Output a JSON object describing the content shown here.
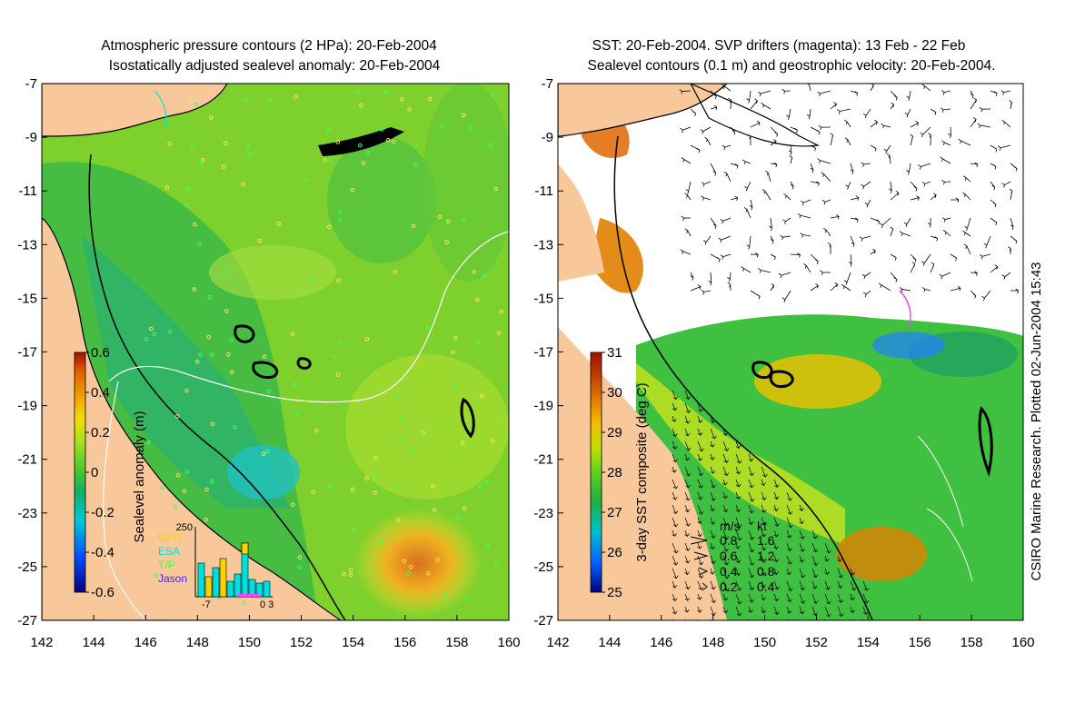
{
  "left_panel": {
    "title_line1": "Atmospheric pressure contours (2 HPa): 20-Feb-2004",
    "title_line2": "Isostatically adjusted sealevel anomaly: 20-Feb-2004",
    "colorbar": {
      "label": "Sealevel anomaly (m)",
      "ticks": [
        "0.6",
        "0.4",
        "0.2",
        "0",
        "-0.2",
        "-0.4",
        "-0.6"
      ]
    },
    "inset": {
      "ymax_label": "250",
      "xmin_label": "-7",
      "xmax_label": "0 3",
      "legend": [
        {
          "label": "GFO",
          "color": "#ffd000"
        },
        {
          "label": "ESA",
          "color": "#00e0e0"
        },
        {
          "label": "T/P",
          "color": "#40ff40"
        },
        {
          "label": "Jason",
          "color": "#4020ff"
        }
      ]
    }
  },
  "right_panel": {
    "title_line1": "SST: 20-Feb-2004. SVP drifters (magenta): 13 Feb - 22 Feb",
    "title_line2": "Sealevel contours (0.1 m) and geostrophic velocity: 20-Feb-2004.",
    "colorbar": {
      "label": "3-day SST composite (deg C)",
      "ticks": [
        "31",
        "30",
        "29",
        "28",
        "27",
        "26",
        "25"
      ]
    },
    "velocity_legend": {
      "col1_header": "m/s",
      "col2_header": "kt",
      "rows": [
        {
          "ms": "0.8",
          "kt": "1.6"
        },
        {
          "ms": "0.6",
          "kt": "1.2"
        },
        {
          "ms": "0.4",
          "kt": "0.8"
        },
        {
          "ms": "0.2",
          "kt": "0.4"
        }
      ]
    }
  },
  "axes": {
    "lon_ticks": [
      "142",
      "144",
      "146",
      "148",
      "150",
      "152",
      "154",
      "156",
      "158",
      "160"
    ],
    "lat_ticks": [
      "-7",
      "-9",
      "-11",
      "-13",
      "-15",
      "-17",
      "-19",
      "-21",
      "-23",
      "-25",
      "-27"
    ],
    "lon_range": [
      142,
      160
    ],
    "lat_range": [
      -27,
      -7
    ]
  },
  "credit": "CSIRO Marine Research. Plotted 02-Jun-2004 15:43",
  "colors": {
    "land": "#f8c89a",
    "sealevel_scale": [
      "#000080",
      "#0050ff",
      "#00c8d8",
      "#10b060",
      "#40c830",
      "#a0e020",
      "#f0e000",
      "#f0a000",
      "#e06000",
      "#a01000"
    ],
    "sst_scale": [
      "#000080",
      "#0060ff",
      "#00c0d0",
      "#20b040",
      "#60d020",
      "#c0e000",
      "#f0c000",
      "#e08000",
      "#c04000",
      "#a01000"
    ]
  }
}
